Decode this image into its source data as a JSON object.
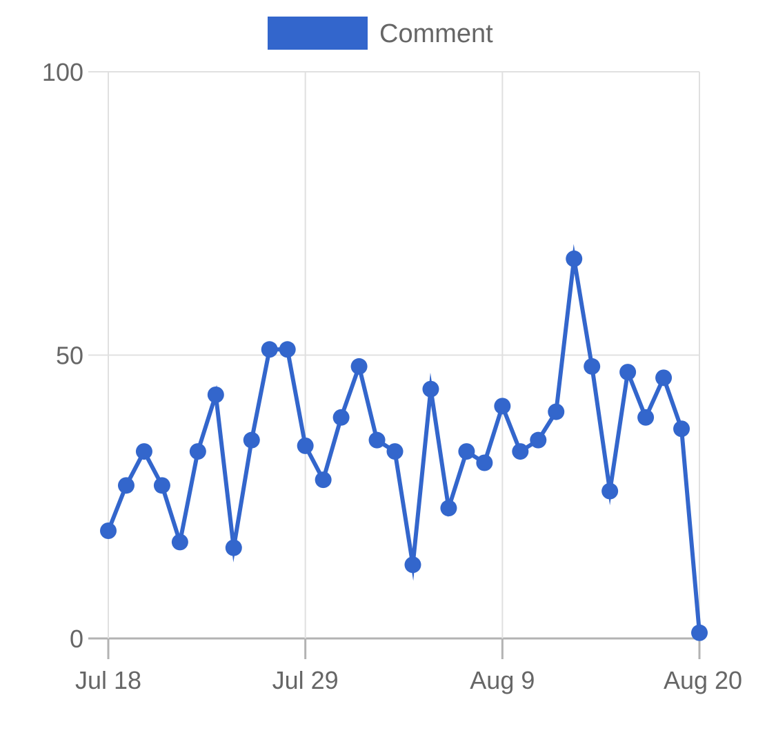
{
  "chart_data": {
    "type": "line",
    "x_start": "Jul 18",
    "x_end": "Aug 20",
    "x_ticks": [
      "Jul 18",
      "Jul 29",
      "Aug 9",
      "Aug 20"
    ],
    "ylim": [
      0,
      100
    ],
    "y_ticks": [
      "0",
      "50",
      "100"
    ],
    "grid": true,
    "legend_position": "top-center",
    "series": [
      {
        "name": "Comment",
        "color": "#3366cc",
        "values": [
          19,
          27,
          33,
          27,
          17,
          33,
          43,
          16,
          35,
          51,
          51,
          34,
          28,
          39,
          48,
          35,
          33,
          13,
          44,
          23,
          33,
          31,
          41,
          33,
          35,
          40,
          67,
          48,
          26,
          47,
          39,
          46,
          37,
          1
        ]
      }
    ]
  }
}
